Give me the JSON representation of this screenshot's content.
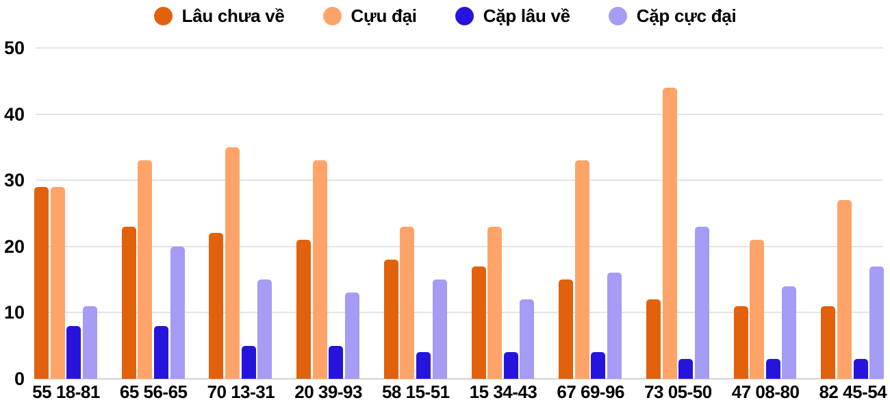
{
  "chart_data": {
    "type": "bar",
    "title": "",
    "xlabel": "",
    "ylabel": "",
    "ylim": [
      0,
      50
    ],
    "yticks": [
      0,
      10,
      20,
      30,
      40,
      50
    ],
    "grid": true,
    "legend_position": "top",
    "categories": [
      "55 18-81",
      "65 56-65",
      "70 13-31",
      "20 39-93",
      "58 15-51",
      "15 34-43",
      "67 69-96",
      "73 05-50",
      "47 08-80",
      "82 45-54"
    ],
    "series": [
      {
        "name": "Lâu chưa về",
        "color": "#e1610d",
        "values": [
          29,
          23,
          22,
          21,
          18,
          17,
          15,
          12,
          11,
          11
        ]
      },
      {
        "name": "Cựu đại",
        "color": "#ffa469",
        "values": [
          29,
          33,
          35,
          33,
          23,
          23,
          33,
          44,
          21,
          27
        ]
      },
      {
        "name": "Cặp lâu về",
        "color": "#2614dc",
        "values": [
          8,
          8,
          5,
          5,
          4,
          4,
          4,
          3,
          3,
          3
        ]
      },
      {
        "name": "Cặp cực đại",
        "color": "#a49cf5",
        "values": [
          11,
          20,
          15,
          13,
          15,
          12,
          16,
          23,
          14,
          17
        ]
      }
    ]
  },
  "colors": {
    "background": "#ffffff",
    "gridline": "#e3e3e3",
    "axisline": "#d2d2d2",
    "text": "#000000"
  }
}
